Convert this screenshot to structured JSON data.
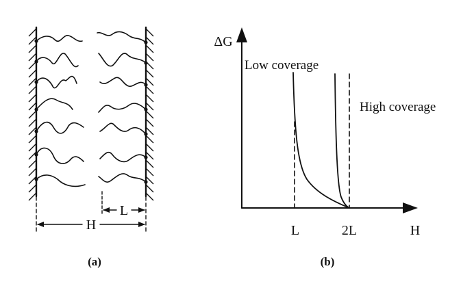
{
  "panel_a": {
    "caption": "(a)",
    "spacing_label": "H",
    "brush_length_label": "L",
    "chains_per_wall": 7
  },
  "panel_b": {
    "caption": "(b)",
    "y_axis_label": "ΔG",
    "x_axis_label": "H",
    "tick_L": "L",
    "tick_2L": "2L",
    "low_coverage_label": "Low coverage",
    "high_coverage_label": "High coverage"
  },
  "colors": {
    "ink": "#111111",
    "background": "#ffffff"
  }
}
